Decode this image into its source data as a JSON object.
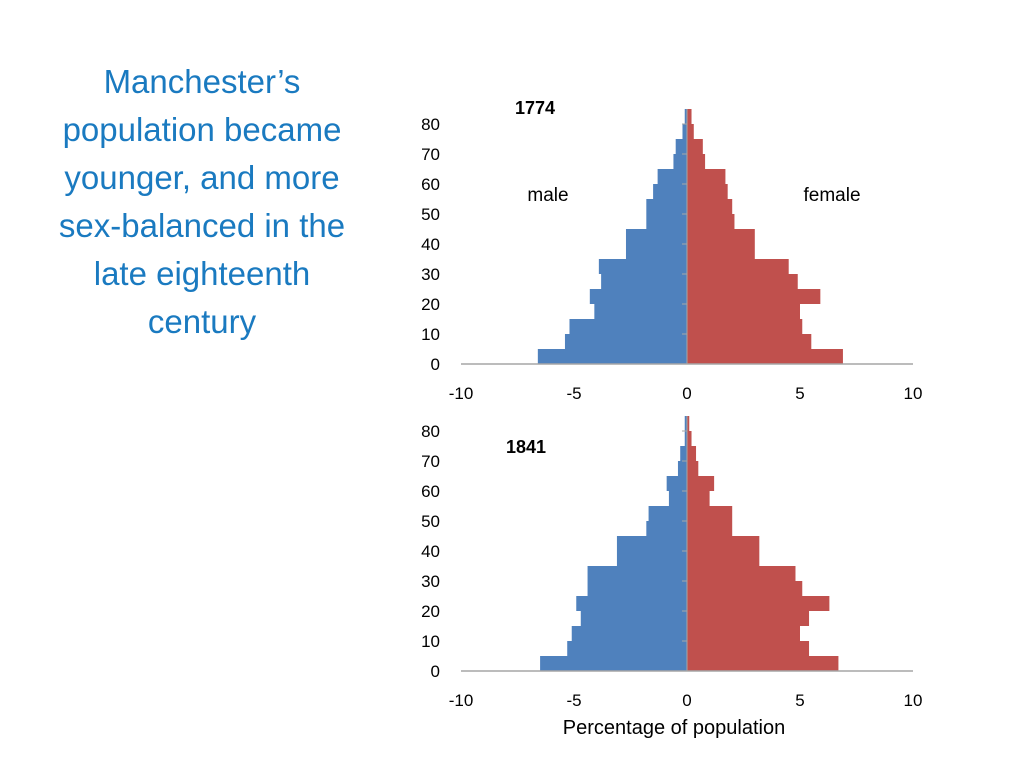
{
  "title_lines": [
    "Manchester’s",
    "population became",
    "younger, and more",
    "sex-balanced in the",
    "late eighteenth",
    "century"
  ],
  "colors": {
    "title": "#1a7ac0",
    "male": "#4f81bd",
    "female": "#c0504d",
    "axis": "#a6a6a6"
  },
  "chart_data": [
    {
      "type": "bar",
      "orientation": "horizontal",
      "title": "1774",
      "xlabel": "",
      "ylabel": "",
      "xlim": [
        -10,
        10
      ],
      "ylim": [
        0,
        85
      ],
      "x_ticks": [
        "-10",
        "-5",
        "0",
        "5",
        "10"
      ],
      "y_ticks": [
        "0",
        "10",
        "20",
        "30",
        "40",
        "50",
        "60",
        "70",
        "80"
      ],
      "age_groups": [
        0,
        5,
        10,
        15,
        20,
        25,
        30,
        35,
        40,
        45,
        50,
        55,
        60,
        65,
        70,
        75,
        80
      ],
      "series": [
        {
          "name": "male",
          "values": [
            -6.6,
            -5.4,
            -5.2,
            -4.1,
            -4.3,
            -3.8,
            -3.9,
            -2.7,
            -2.7,
            -1.8,
            -1.8,
            -1.5,
            -1.3,
            -0.6,
            -0.5,
            -0.2,
            -0.1
          ]
        },
        {
          "name": "female",
          "values": [
            6.9,
            5.5,
            5.1,
            5.0,
            5.9,
            4.9,
            4.5,
            3.0,
            3.0,
            2.1,
            2.0,
            1.8,
            1.7,
            0.8,
            0.7,
            0.3,
            0.2
          ]
        }
      ]
    },
    {
      "type": "bar",
      "orientation": "horizontal",
      "title": "1841",
      "xlabel": "Percentage of population",
      "ylabel": "",
      "xlim": [
        -10,
        10
      ],
      "ylim": [
        0,
        85
      ],
      "x_ticks": [
        "-10",
        "-5",
        "0",
        "5",
        "10"
      ],
      "y_ticks": [
        "0",
        "10",
        "20",
        "30",
        "40",
        "50",
        "60",
        "70",
        "80"
      ],
      "age_groups": [
        0,
        5,
        10,
        15,
        20,
        25,
        30,
        35,
        40,
        45,
        50,
        55,
        60,
        65,
        70,
        75,
        80
      ],
      "series": [
        {
          "name": "",
          "values": [
            -6.5,
            -5.3,
            -5.1,
            -4.7,
            -4.9,
            -4.4,
            -4.4,
            -3.1,
            -3.1,
            -1.8,
            -1.7,
            -0.8,
            -0.9,
            -0.4,
            -0.3,
            -0.1,
            -0.1
          ]
        },
        {
          "name": "",
          "values": [
            6.7,
            5.4,
            5.0,
            5.4,
            6.3,
            5.1,
            4.8,
            3.2,
            3.2,
            2.0,
            2.0,
            1.0,
            1.2,
            0.5,
            0.4,
            0.2,
            0.1
          ]
        }
      ]
    }
  ]
}
